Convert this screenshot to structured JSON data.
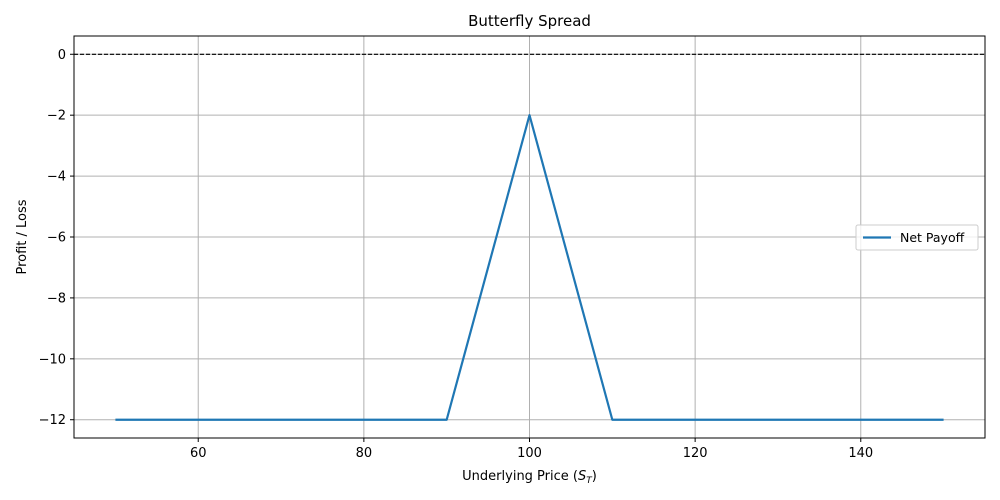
{
  "chart_data": {
    "type": "line",
    "title": "Butterfly Spread",
    "xlabel_main": "Underlying Price (",
    "xlabel_symbol": "S",
    "xlabel_subscript": "T",
    "xlabel_close": ")",
    "ylabel": "Profit / Loss",
    "xlim": [
      45,
      155
    ],
    "ylim": [
      -12.6,
      0.6
    ],
    "xticks": [
      60,
      80,
      100,
      120,
      140
    ],
    "yticks": [
      0,
      -2,
      -4,
      -6,
      -8,
      -10,
      -12
    ],
    "grid": true,
    "legend_position": "center-right",
    "reference_line": {
      "y": 0,
      "style": "dashed",
      "color": "#000000"
    },
    "series": [
      {
        "name": "Net Payoff",
        "color": "#1f77b4",
        "x": [
          50,
          90,
          100,
          110,
          150
        ],
        "y": [
          -12,
          -12,
          -2,
          -12,
          -12
        ]
      }
    ]
  }
}
